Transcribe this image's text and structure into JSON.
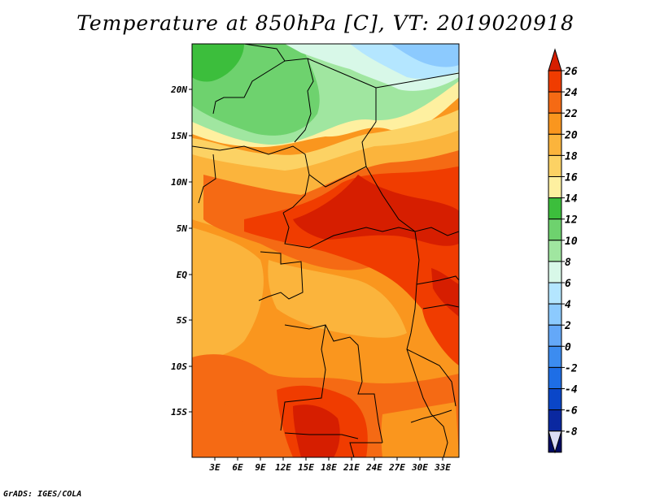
{
  "title": "Temperature at 850hPa [C], VT: 2019020918",
  "credit": "GrADS: IGES/COLA",
  "map": {
    "lat_labels": [
      "20N",
      "15N",
      "10N",
      "5N",
      "EQ",
      "5S",
      "10S",
      "15S"
    ],
    "lon_labels": [
      "3E",
      "6E",
      "9E",
      "12E",
      "15E",
      "18E",
      "21E",
      "24E",
      "27E",
      "30E",
      "33E"
    ]
  },
  "colorbar": {
    "levels": [
      "26",
      "24",
      "22",
      "20",
      "18",
      "16",
      "14",
      "12",
      "10",
      "8",
      "6",
      "4",
      "2",
      "0",
      "-2",
      "-4",
      "-6",
      "-8"
    ],
    "colors": [
      "#d61e00",
      "#f03c00",
      "#f56a14",
      "#fa961e",
      "#fbb43c",
      "#fcd264",
      "#fef0a0",
      "#3cbe3c",
      "#6ed26e",
      "#a0e6a0",
      "#d8f8e8",
      "#b4e6ff",
      "#8ccafe",
      "#64a8f8",
      "#3c8cf0",
      "#1e6ee6",
      "#0a46c8",
      "#0a28a0",
      "#000a64",
      "#dadcf4"
    ]
  }
}
